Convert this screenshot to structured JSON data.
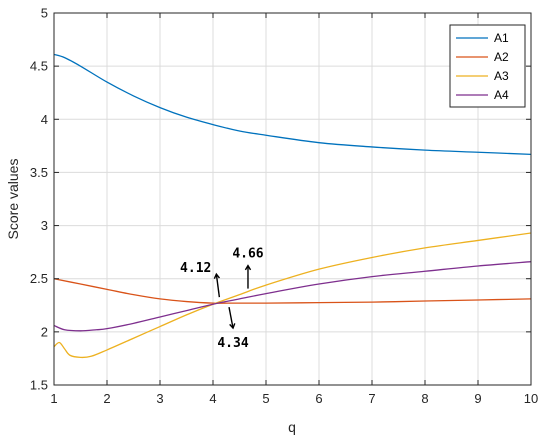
{
  "chart_data": {
    "type": "line",
    "xlabel": "q",
    "ylabel": "Score values",
    "xlim": [
      1,
      10
    ],
    "ylim": [
      1.5,
      5
    ],
    "xticks": [
      1,
      2,
      3,
      4,
      5,
      6,
      7,
      8,
      9,
      10
    ],
    "yticks": [
      1.5,
      2,
      2.5,
      3,
      3.5,
      4,
      4.5,
      5
    ],
    "ytick_labels": [
      "1.5",
      "2",
      "2.5",
      "3",
      "3.5",
      "4",
      "4.5",
      "5"
    ],
    "grid": true,
    "legend_position": "top-right",
    "series": [
      {
        "name": "A1",
        "color": "#0072BD",
        "x": [
          1,
          1.2,
          1.5,
          2,
          2.5,
          3,
          3.5,
          4,
          4.5,
          5,
          6,
          7,
          8,
          9,
          10
        ],
        "y": [
          4.61,
          4.58,
          4.5,
          4.35,
          4.22,
          4.11,
          4.02,
          3.95,
          3.89,
          3.85,
          3.78,
          3.74,
          3.71,
          3.69,
          3.67
        ]
      },
      {
        "name": "A2",
        "color": "#D95319",
        "x": [
          1,
          1.5,
          2,
          2.5,
          3,
          3.5,
          4,
          4.3,
          5,
          6,
          7,
          8,
          9,
          10
        ],
        "y": [
          2.5,
          2.45,
          2.4,
          2.35,
          2.31,
          2.285,
          2.27,
          2.27,
          2.27,
          2.275,
          2.28,
          2.29,
          2.3,
          2.31
        ]
      },
      {
        "name": "A3",
        "color": "#EDB120",
        "x": [
          1,
          1.1,
          1.2,
          1.3,
          1.5,
          1.7,
          2,
          2.5,
          3,
          3.5,
          4,
          4.5,
          5,
          6,
          7,
          8,
          9,
          10
        ],
        "y": [
          1.86,
          1.9,
          1.84,
          1.78,
          1.76,
          1.77,
          1.83,
          1.94,
          2.05,
          2.16,
          2.26,
          2.35,
          2.44,
          2.59,
          2.7,
          2.79,
          2.86,
          2.93
        ]
      },
      {
        "name": "A4",
        "color": "#7E2F8E",
        "x": [
          1,
          1.2,
          1.5,
          1.8,
          2,
          2.5,
          3,
          3.5,
          4,
          4.5,
          5,
          6,
          7,
          8,
          9,
          10
        ],
        "y": [
          2.06,
          2.02,
          2.01,
          2.02,
          2.03,
          2.08,
          2.14,
          2.2,
          2.26,
          2.31,
          2.36,
          2.45,
          2.52,
          2.57,
          2.62,
          2.66
        ]
      }
    ],
    "annotations": [
      {
        "text": "4.12",
        "x": 4.12,
        "y": 2.28,
        "direction": "up"
      },
      {
        "text": "4.66",
        "x": 4.66,
        "y": 2.36,
        "direction": "up"
      },
      {
        "text": "4.34",
        "x": 4.34,
        "y": 2.28,
        "direction": "down"
      }
    ]
  }
}
